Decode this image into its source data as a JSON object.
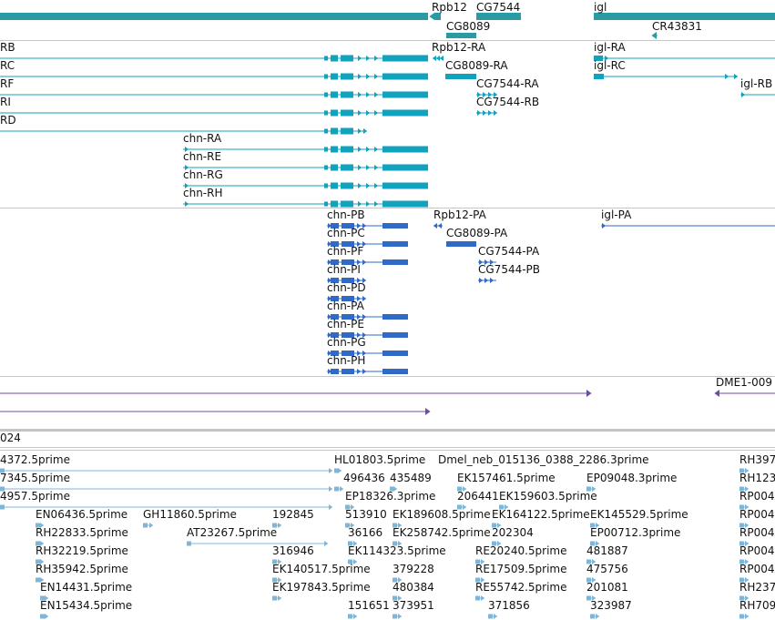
{
  "colors": {
    "gene": "#2a9aa4",
    "transcript": "#11a2bd",
    "protein": "#3169c6",
    "purple": "#6d4ea3",
    "gray": "#888888",
    "cdna": "#7eb6d8",
    "sep": "#c6c6c6"
  },
  "genes": [
    {
      "label": "Rpb12"
    },
    {
      "label": "CG7544"
    },
    {
      "label": "igl"
    },
    {
      "label": "CG8089"
    },
    {
      "label": "CR43831"
    }
  ],
  "transcripts": [
    {
      "label": "RB"
    },
    {
      "label": "RC"
    },
    {
      "label": "RF"
    },
    {
      "label": "RI"
    },
    {
      "label": "RD"
    },
    {
      "label": "chn-RA"
    },
    {
      "label": "chn-RE"
    },
    {
      "label": "chn-RG"
    },
    {
      "label": "chn-RH"
    },
    {
      "label": "Rpb12-RA"
    },
    {
      "label": "CG8089-RA"
    },
    {
      "label": "CG7544-RA"
    },
    {
      "label": "CG7544-RB"
    },
    {
      "label": "igl-RA"
    },
    {
      "label": "igl-RC"
    },
    {
      "label": "igl-RB"
    }
  ],
  "proteins": [
    {
      "label": "chn-PB"
    },
    {
      "label": "chn-PC"
    },
    {
      "label": "chn-PF"
    },
    {
      "label": "chn-PI"
    },
    {
      "label": "chn-PD"
    },
    {
      "label": "chn-PA"
    },
    {
      "label": "chn-PE"
    },
    {
      "label": "chn-PG"
    },
    {
      "label": "chn-PH"
    },
    {
      "label": "Rpb12-PA"
    },
    {
      "label": "CG8089-PA"
    },
    {
      "label": "CG7544-PA"
    },
    {
      "label": "CG7544-PB"
    },
    {
      "label": "igl-PA"
    }
  ],
  "purple_track": [
    {
      "label": "DME1-009"
    }
  ],
  "gray_track": [
    {
      "label": "024"
    }
  ],
  "cdna": [
    {
      "label": "4372.5prime"
    },
    {
      "label": "HL01803.5prime"
    },
    {
      "label": "Dmel_neb_015136_0388_2286.3prime"
    },
    {
      "label": "RH397"
    },
    {
      "label": "7345.5prime"
    },
    {
      "label": "496436"
    },
    {
      "label": "435489"
    },
    {
      "label": "EK157461.5prime"
    },
    {
      "label": "EP09048.3prime"
    },
    {
      "label": "RH123"
    },
    {
      "label": "4957.5prime"
    },
    {
      "label": "EP18326.3prime"
    },
    {
      "label": "206441"
    },
    {
      "label": "EK159603.5prime"
    },
    {
      "label": "RP004"
    },
    {
      "label": "EN06436.5prime"
    },
    {
      "label": "GH11860.5prime"
    },
    {
      "label": "192845"
    },
    {
      "label": "513910"
    },
    {
      "label": "EK189608.5prime"
    },
    {
      "label": "EK164122.5prime"
    },
    {
      "label": "EK145529.5prime"
    },
    {
      "label": "RP004"
    },
    {
      "label": "RH22833.5prime"
    },
    {
      "label": "AT23267.5prime"
    },
    {
      "label": "36166"
    },
    {
      "label": "EK258742.5prime"
    },
    {
      "label": "202304"
    },
    {
      "label": "EP00712.3prime"
    },
    {
      "label": "RP004"
    },
    {
      "label": "RH32219.5prime"
    },
    {
      "label": "316946"
    },
    {
      "label": "EK114323.5prime"
    },
    {
      "label": "RE20240.5prime"
    },
    {
      "label": "481887"
    },
    {
      "label": "RP004"
    },
    {
      "label": "RH35942.5prime"
    },
    {
      "label": "EK140517.5prime"
    },
    {
      "label": "379228"
    },
    {
      "label": "RE17509.5prime"
    },
    {
      "label": "475756"
    },
    {
      "label": "RP004"
    },
    {
      "label": "EN14431.5prime"
    },
    {
      "label": "EK197843.5prime"
    },
    {
      "label": "480384"
    },
    {
      "label": "RE55742.5prime"
    },
    {
      "label": "201081"
    },
    {
      "label": "RH237"
    },
    {
      "label": "EN15434.5prime"
    },
    {
      "label": "151651"
    },
    {
      "label": "373951"
    },
    {
      "label": "371856"
    },
    {
      "label": "323987"
    },
    {
      "label": "RH709"
    }
  ]
}
